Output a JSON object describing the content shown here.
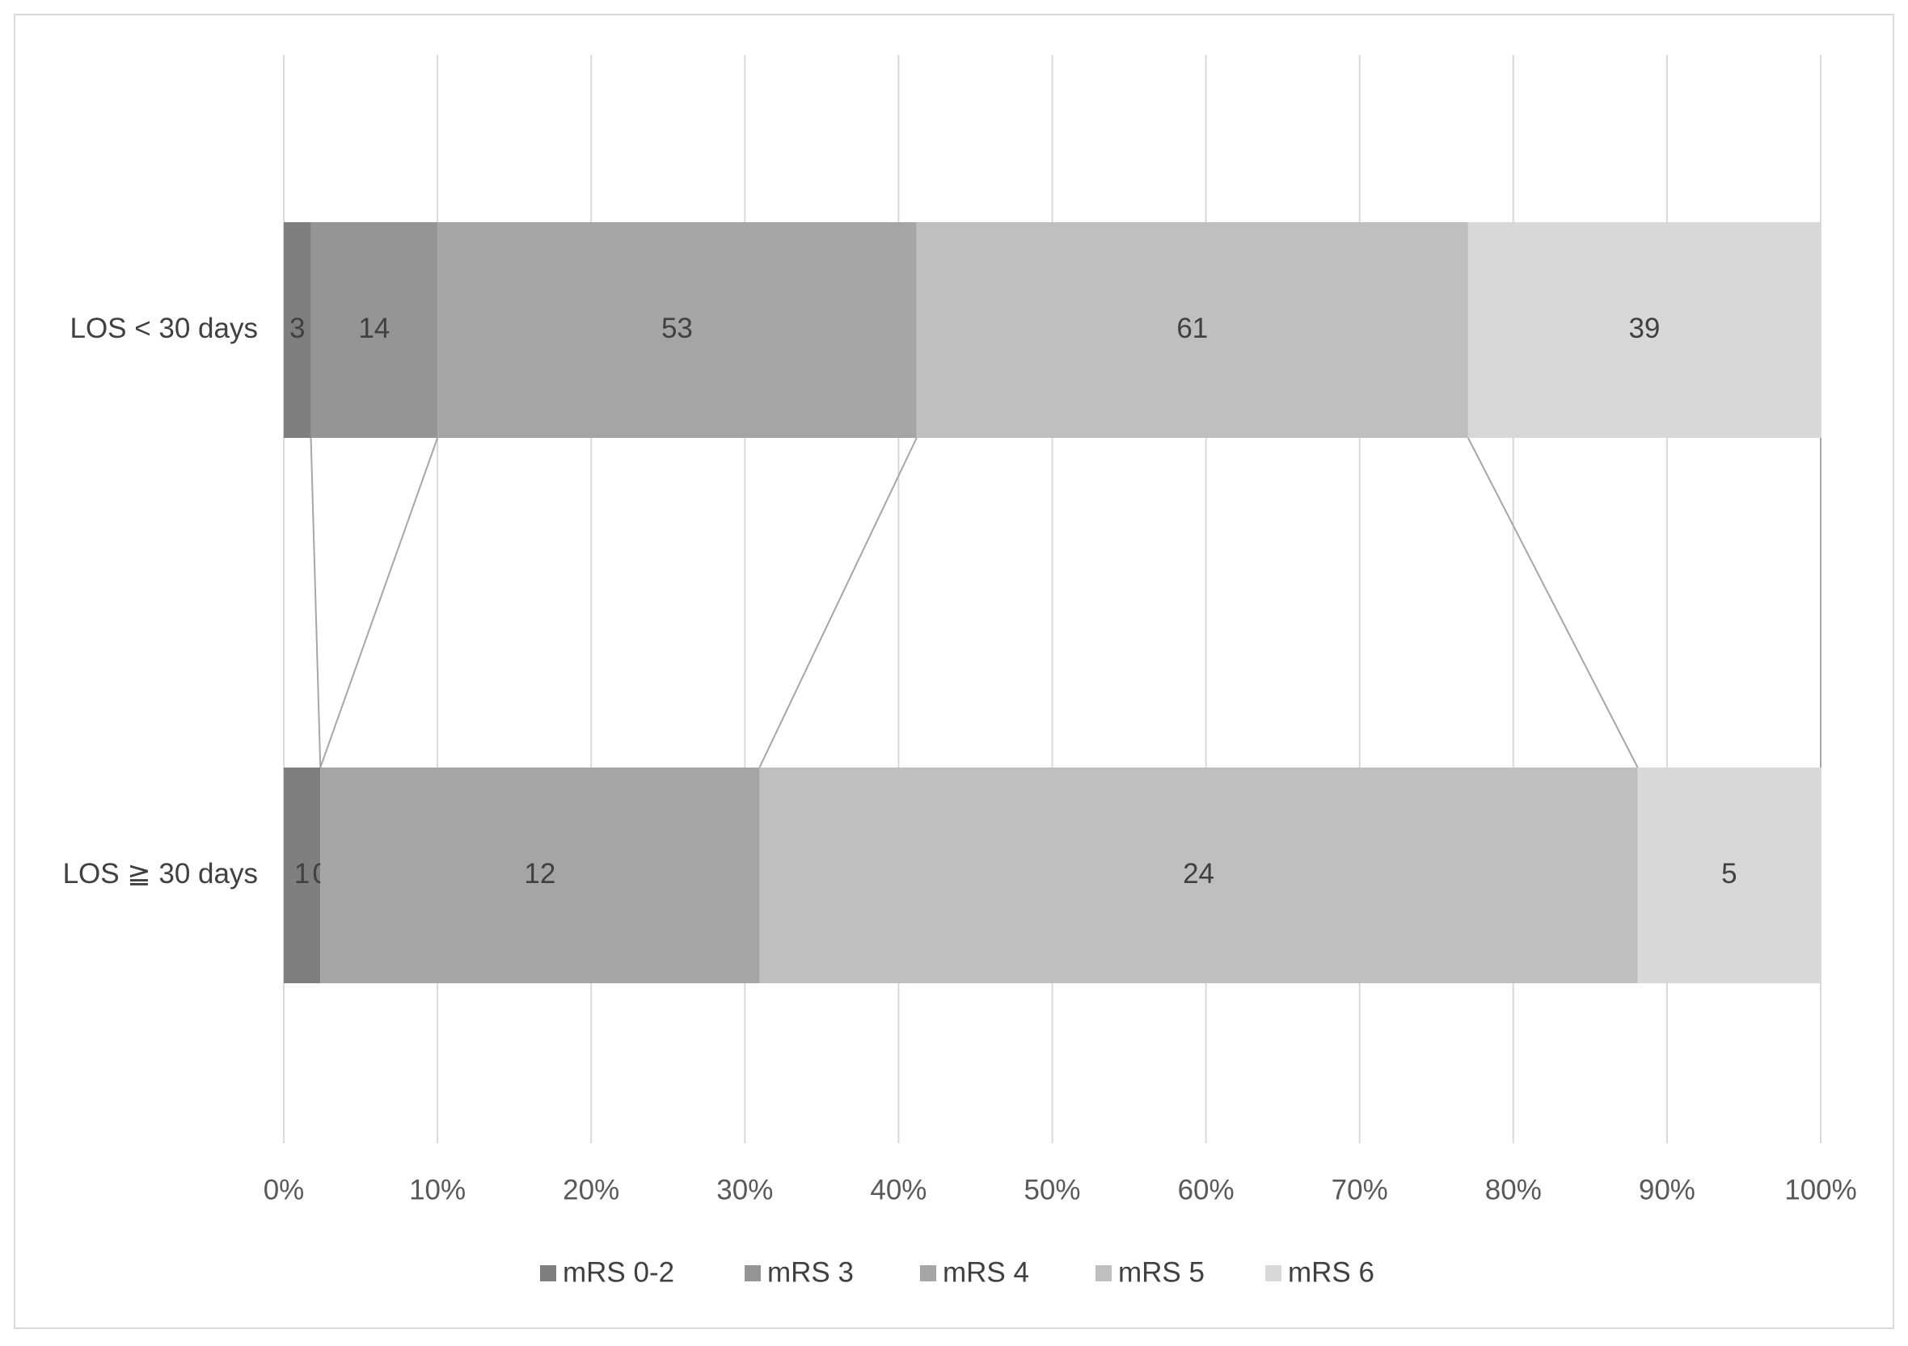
{
  "chart_data": {
    "type": "bar",
    "orientation": "horizontal",
    "stacking": "percent",
    "categories": [
      "LOS < 30 days",
      "LOS ≧ 30 days"
    ],
    "series": [
      {
        "name": "mRS 0-2",
        "color": "#7f7f7f",
        "values": [
          3,
          1
        ]
      },
      {
        "name": "mRS 3",
        "color": "#959595",
        "values": [
          14,
          0
        ]
      },
      {
        "name": "mRS 4",
        "color": "#a5a5a5",
        "values": [
          53,
          12
        ]
      },
      {
        "name": "mRS 5",
        "color": "#bfbfbf",
        "values": [
          61,
          24
        ]
      },
      {
        "name": "mRS 6",
        "color": "#d8d8d8",
        "values": [
          39,
          5
        ]
      }
    ],
    "xlim": [
      0,
      100
    ],
    "xticks": [
      {
        "value": 0,
        "label": "0%"
      },
      {
        "value": 10,
        "label": "10%"
      },
      {
        "value": 20,
        "label": "20%"
      },
      {
        "value": 30,
        "label": "30%"
      },
      {
        "value": 40,
        "label": "40%"
      },
      {
        "value": 50,
        "label": "50%"
      },
      {
        "value": 60,
        "label": "60%"
      },
      {
        "value": 70,
        "label": "70%"
      },
      {
        "value": 80,
        "label": "80%"
      },
      {
        "value": 90,
        "label": "90%"
      },
      {
        "value": 100,
        "label": "100%"
      }
    ],
    "grid": true,
    "series_lines": true,
    "legend": "bottom"
  }
}
